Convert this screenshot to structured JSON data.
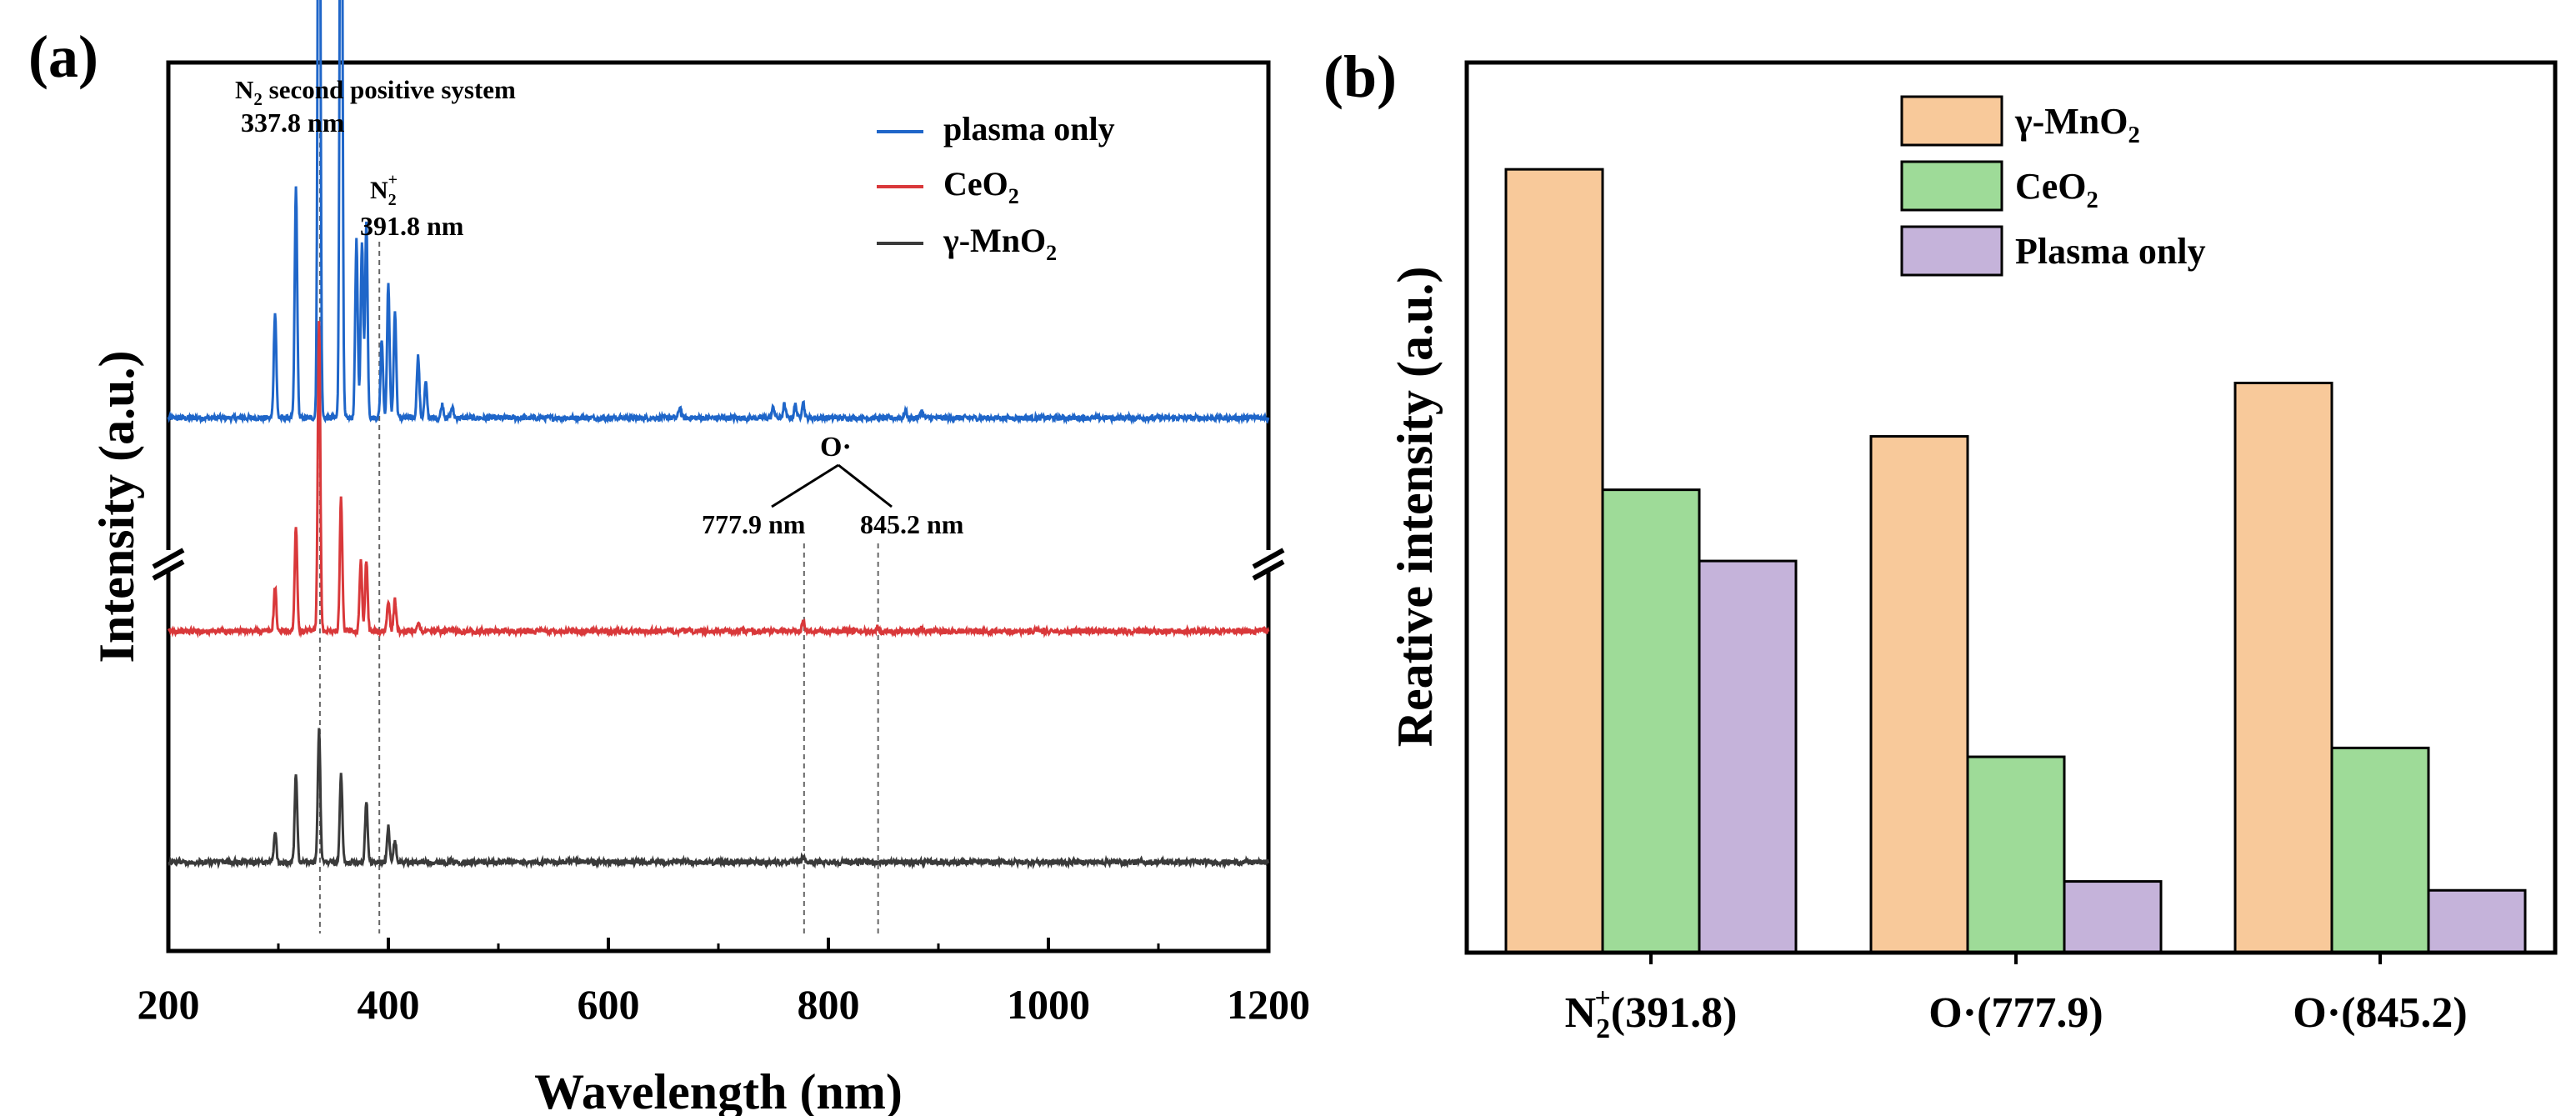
{
  "panels": {
    "a_label": "(a)",
    "b_label": "(b)"
  },
  "colors": {
    "plasma_only": "#1f66c9",
    "ceo2": "#d9383a",
    "mno2": "#3a3a3a",
    "bar_mno2": "#f8c99a",
    "bar_ceo2": "#9edb98",
    "bar_plasma": "#c5b3da"
  },
  "chart_data": [
    {
      "type": "line",
      "panel": "a",
      "xlabel": "Wavelength (nm)",
      "ylabel": "Intensity (a.u.)",
      "xlim": [
        200,
        1200
      ],
      "xticks": [
        200,
        400,
        600,
        800,
        1000,
        1200
      ],
      "xtick_labels": [
        "200",
        "400",
        "600",
        "800",
        "1000",
        "1200"
      ],
      "axis_break": true,
      "legend": [
        "plasma only",
        "CeO2",
        "γ-MnO2"
      ],
      "legend_display": [
        {
          "main": "plasma only",
          "sub": ""
        },
        {
          "main": "CeO",
          "sub": "2"
        },
        {
          "main": "γ-MnO",
          "sub": "2"
        }
      ],
      "annotations": {
        "n2_title_main": "N",
        "n2_title_sub": "2",
        "n2_title_rest": " second positive system",
        "n2_wavelength": "337.8 nm",
        "n2plus_main": "N",
        "n2plus_sub": "2",
        "n2plus_sup": "+",
        "n2plus_wavelength": "391.8 nm",
        "o_label": "O·",
        "o_line1": "777.9 nm",
        "o_line2": "845.2 nm"
      },
      "reference_lines_nm": [
        337.8,
        391.8,
        777.9,
        845.2
      ],
      "series": [
        {
          "name": "plasma only",
          "baseline": 0.6,
          "peaks": [
            [
              297,
              0.12
            ],
            [
              316,
              0.26
            ],
            [
              337,
              0.95
            ],
            [
              357,
              0.95
            ],
            [
              371,
              0.2
            ],
            [
              376,
              0.2
            ],
            [
              380,
              0.22
            ],
            [
              394,
              0.09
            ],
            [
              400,
              0.15
            ],
            [
              406,
              0.12
            ],
            [
              427,
              0.07
            ],
            [
              434,
              0.04
            ],
            [
              449,
              0.015
            ],
            [
              458,
              0.012
            ],
            [
              665,
              0.012
            ],
            [
              750,
              0.012
            ],
            [
              760,
              0.015
            ],
            [
              770,
              0.015
            ],
            [
              777,
              0.018
            ],
            [
              870,
              0.008
            ],
            [
              885,
              0.008
            ]
          ]
        },
        {
          "name": "CeO2",
          "baseline": 0.36,
          "peaks": [
            [
              297,
              0.05
            ],
            [
              316,
              0.12
            ],
            [
              337,
              0.35
            ],
            [
              357,
              0.15
            ],
            [
              375,
              0.08
            ],
            [
              380,
              0.08
            ],
            [
              400,
              0.035
            ],
            [
              406,
              0.035
            ],
            [
              427,
              0.01
            ],
            [
              777,
              0.012
            ],
            [
              845,
              0.005
            ],
            [
              885,
              0.004
            ]
          ]
        },
        {
          "name": "γ-MnO2",
          "baseline": 0.1,
          "peaks": [
            [
              297,
              0.035
            ],
            [
              316,
              0.1
            ],
            [
              337,
              0.15
            ],
            [
              357,
              0.1
            ],
            [
              380,
              0.07
            ],
            [
              400,
              0.04
            ],
            [
              406,
              0.025
            ],
            [
              777,
              0.006
            ]
          ]
        }
      ]
    },
    {
      "type": "bar",
      "panel": "b",
      "ylabel": "Reative intensity (a.u.)",
      "ylim": [
        0,
        1
      ],
      "categories": [
        "N2+(391.8)",
        "O·(777.9)",
        "O·(845.2)"
      ],
      "category_display": [
        {
          "main": "N",
          "sub": "2",
          "sup": "+",
          "rest": "(391.8)"
        },
        {
          "main": "O·(777.9)",
          "sub": "",
          "sup": "",
          "rest": ""
        },
        {
          "main": "O·(845.2)",
          "sub": "",
          "sup": "",
          "rest": ""
        }
      ],
      "legend_display": [
        {
          "main": "γ-MnO",
          "sub": "2"
        },
        {
          "main": "CeO",
          "sub": "2"
        },
        {
          "main": "Plasma only",
          "sub": ""
        }
      ],
      "series": [
        {
          "name": "γ-MnO2",
          "values": [
            0.88,
            0.58,
            0.64
          ]
        },
        {
          "name": "CeO2",
          "values": [
            0.52,
            0.22,
            0.23
          ]
        },
        {
          "name": "Plasma only",
          "values": [
            0.44,
            0.08,
            0.07
          ]
        }
      ]
    }
  ]
}
